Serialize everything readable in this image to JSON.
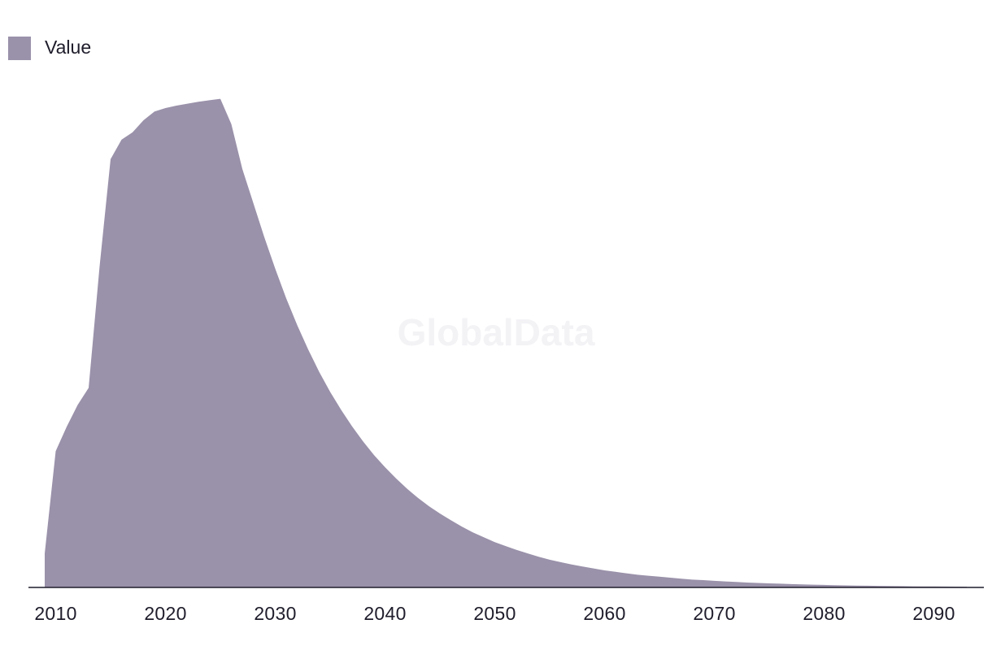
{
  "watermark": "GlobalData",
  "chart_data": {
    "type": "area",
    "title": "",
    "xlabel": "",
    "ylabel": "",
    "legend": {
      "position": "top-left",
      "entries": [
        "Value"
      ]
    },
    "grid": false,
    "xlim": [
      2008.5,
      2095
    ],
    "ylim": [
      0,
      100
    ],
    "x_ticks": [
      2010,
      2020,
      2030,
      2040,
      2050,
      2060,
      2070,
      2080,
      2090
    ],
    "series": [
      {
        "name": "Value",
        "color": "#9a91aa",
        "x": [
          2009,
          2010,
          2011,
          2012,
          2013,
          2014,
          2015,
          2016,
          2017,
          2018,
          2019,
          2020,
          2021,
          2022,
          2023,
          2024,
          2025,
          2026,
          2027,
          2028,
          2029,
          2030,
          2031,
          2032,
          2033,
          2034,
          2035,
          2036,
          2037,
          2038,
          2039,
          2040,
          2041,
          2042,
          2043,
          2044,
          2045,
          2046,
          2047,
          2048,
          2049,
          2050,
          2051,
          2052,
          2053,
          2054,
          2055,
          2056,
          2057,
          2058,
          2059,
          2060,
          2061,
          2062,
          2063,
          2064,
          2065,
          2066,
          2067,
          2068,
          2069,
          2070,
          2071,
          2072,
          2073,
          2074,
          2075,
          2076,
          2077,
          2078,
          2079,
          2080,
          2081,
          2082,
          2083,
          2084,
          2085,
          2086,
          2087,
          2088,
          2089,
          2090,
          2091,
          2092,
          2093
        ],
        "values": [
          7.0,
          28.0,
          33.0,
          37.5,
          41.0,
          66.0,
          88.0,
          92.0,
          93.5,
          96.0,
          97.8,
          98.5,
          99.0,
          99.4,
          99.8,
          100.1,
          100.4,
          95.2,
          86.0,
          79.0,
          72.0,
          65.5,
          59.4,
          53.9,
          48.9,
          44.3,
          40.2,
          36.5,
          33.1,
          30.0,
          27.2,
          24.7,
          22.4,
          20.3,
          18.4,
          16.7,
          15.2,
          13.8,
          12.5,
          11.3,
          10.3,
          9.3,
          8.5,
          7.7,
          7.0,
          6.3,
          5.7,
          5.2,
          4.7,
          4.3,
          3.9,
          3.5,
          3.2,
          2.9,
          2.6,
          2.4,
          2.2,
          2.0,
          1.8,
          1.6,
          1.5,
          1.35,
          1.23,
          1.12,
          1.01,
          0.92,
          0.83,
          0.76,
          0.69,
          0.62,
          0.57,
          0.51,
          0.47,
          0.42,
          0.38,
          0.35,
          0.32,
          0.29,
          0.26,
          0.24,
          0.22,
          0.2,
          0.18,
          0.16,
          0.15
        ]
      }
    ]
  }
}
